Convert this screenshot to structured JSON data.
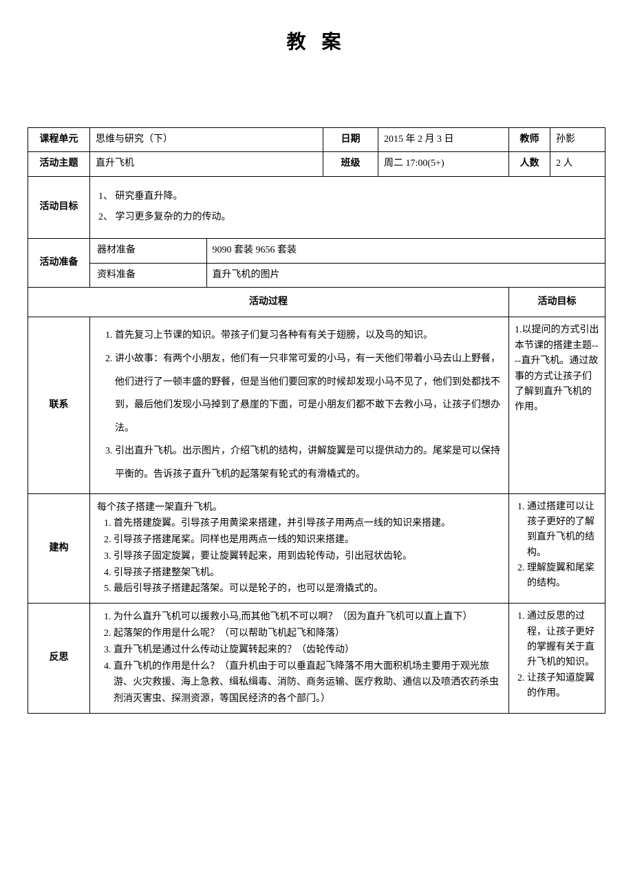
{
  "title": "教 案",
  "header": {
    "unit_label": "课程单元",
    "unit_value": "思维与研究（下）",
    "date_label": "日期",
    "date_value": "2015 年 2 月 3 日",
    "teacher_label": "教师",
    "teacher_value": "孙影",
    "topic_label": "活动主题",
    "topic_value": "直升飞机",
    "class_label": "班级",
    "class_value": "周二 17:00(5+)",
    "count_label": "人数",
    "count_value": "2 人"
  },
  "objectives": {
    "label": "活动目标",
    "items": [
      "1、 研究垂直升降。",
      "2、 学习更多复杂的力的传动。"
    ]
  },
  "prep": {
    "label": "活动准备",
    "equip_label": "器材准备",
    "equip_value": "9090 套装  9656 套装",
    "material_label": "资料准备",
    "material_value": "直升飞机的图片"
  },
  "process_label": "活动过程",
  "goals_label": "活动目标",
  "sections": {
    "connect": {
      "label": "联系",
      "items": [
        "首先复习上节课的知识。带孩子们复习各种有有关于翅膀，以及鸟的知识。",
        "讲小故事：有两个小朋友，他们有一只非常可爱的小马，有一天他们带着小马去山上野餐，他们进行了一顿丰盛的野餐，但是当他们要回家的时候却发现小马不见了，他们到处都找不到，最后他们发现小马掉到了悬崖的下面，可是小朋友们都不敢下去救小马，让孩子们想办法。",
        "引出直升飞机。出示图片，介绍飞机的结构，讲解旋翼是可以提供动力的。尾桨是可以保持平衡的。告诉孩子直升飞机的起落架有轮式的有滑橇式的。"
      ],
      "goals": "1.以提问的方式引出本节课的搭建主题----直升飞机。通过故事的方式让孩子们了解到直升飞机的作用。"
    },
    "build": {
      "label": "建构",
      "intro": "每个孩子搭建一架直升飞机。",
      "items": [
        "首先搭建旋翼。引导孩子用黄梁来搭建，并引导孩子用两点一线的知识来搭建。",
        "引导孩子搭建尾桨。同样也是用两点一线的知识来搭建。",
        "引导孩子固定旋翼，要让旋翼转起来，用到齿轮传动，引出冠状齿轮。",
        "引导孩子搭建整架飞机。",
        "最后引导孩子搭建起落架。可以是轮子的，也可以是滑撬式的。"
      ],
      "goals": [
        "通过搭建可以让孩子更好的了解到直升飞机的结构。",
        "理解旋翼和尾桨的结构。"
      ]
    },
    "reflect": {
      "label": "反思",
      "items": [
        "为什么直升飞机可以援救小马,而其他飞机不可以啊？（因为直升飞机可以直上直下）",
        "起落架的作用是什么呢？（可以帮助飞机起飞和降落）",
        "直升飞机是通过什么传动让旋翼转起来的？（齿轮传动）",
        "直升飞机的作用是什么？（直升机由于可以垂直起飞降落不用大面积机场主要用于观光旅游、火灾救援、海上急救、缉私缉毒、消防、商务运输、医疗救助、通信以及喷洒农药杀虫剂消灭害虫、探测资源，等国民经济的各个部门。）"
      ],
      "goals": [
        "通过反思的过程，让孩子更好的掌握有关于直升飞机的知识。",
        "让孩子知道旋翼的作用。"
      ]
    }
  }
}
